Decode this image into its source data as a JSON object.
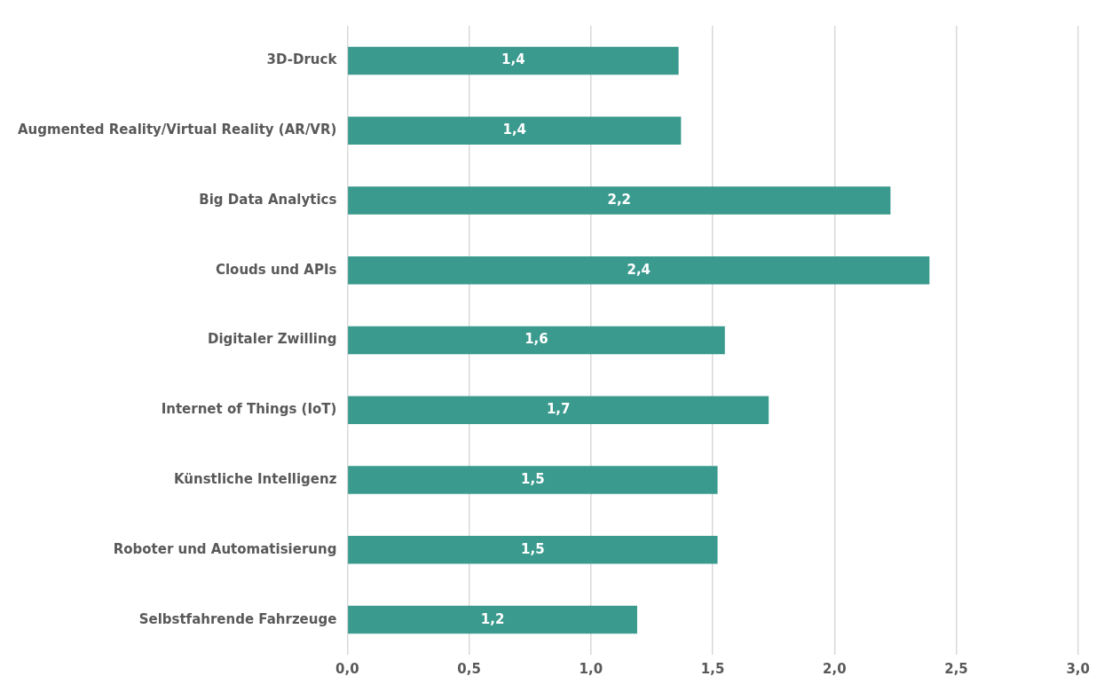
{
  "chart_data": {
    "type": "bar",
    "orientation": "horizontal",
    "categories": [
      "3D-Druck",
      "Augmented Reality/Virtual Reality (AR/VR)",
      "Big Data Analytics",
      "Clouds und APIs",
      "Digitaler Zwilling",
      "Internet of Things (IoT)",
      "Künstliche Intelligenz",
      "Roboter und Automatisierung",
      "Selbstfahrende Fahrzeuge"
    ],
    "values": [
      1.36,
      1.37,
      2.23,
      2.39,
      1.55,
      1.73,
      1.52,
      1.52,
      1.19
    ],
    "value_labels": [
      "1,4",
      "1,4",
      "2,2",
      "2,4",
      "1,6",
      "1,7",
      "1,5",
      "1,5",
      "1,2"
    ],
    "color": "#3a9a8e",
    "xlim": [
      0,
      3
    ],
    "xticks": [
      {
        "value": 0,
        "label": "0,0"
      },
      {
        "value": 0.5,
        "label": "0,5"
      },
      {
        "value": 1,
        "label": "1,0"
      },
      {
        "value": 1.5,
        "label": "1,5"
      },
      {
        "value": 2,
        "label": "2,0"
      },
      {
        "value": 2.5,
        "label": "2,5"
      },
      {
        "value": 3,
        "label": "3,0"
      }
    ],
    "grid": "x",
    "legend": false
  }
}
